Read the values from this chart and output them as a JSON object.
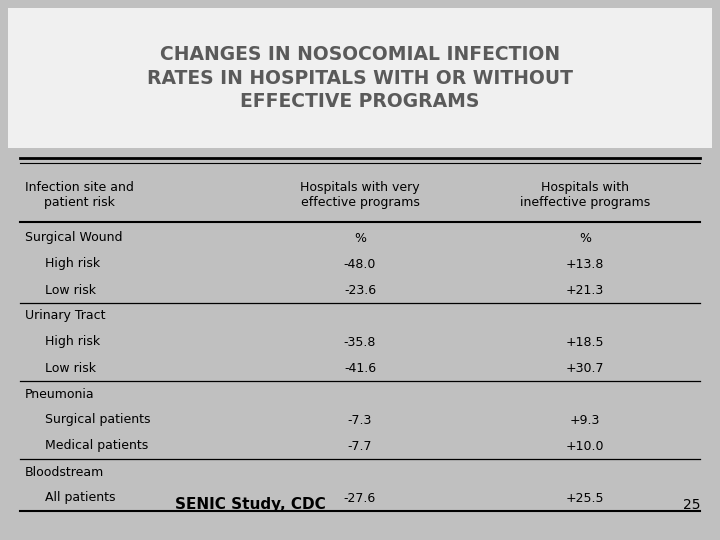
{
  "title_lines": [
    "CHANGES IN NOSOCOMIAL INFECTION",
    "RATES IN HOSPITALS WITH OR WITHOUT",
    "EFFECTIVE PROGRAMS"
  ],
  "title_bg": "#f0f0f0",
  "title_color": "#5a5a5a",
  "bg_color": "#c0c0c0",
  "footer_text": "SENIC Study, CDC",
  "page_number": "25",
  "col_headers": [
    "Infection site and\npatient risk",
    "Hospitals with very\neffective programs",
    "Hospitals with\nineffective programs"
  ],
  "rows": [
    {
      "label": "Surgical Wound",
      "indent": false,
      "col2": "%",
      "col3": "%"
    },
    {
      "label": "High risk",
      "indent": true,
      "col2": "-48.0",
      "col3": "+13.8"
    },
    {
      "label": "Low risk",
      "indent": true,
      "col2": "-23.6",
      "col3": "+21.3"
    },
    {
      "label": "Urinary Tract",
      "indent": false,
      "col2": "",
      "col3": ""
    },
    {
      "label": "High risk",
      "indent": true,
      "col2": "-35.8",
      "col3": "+18.5"
    },
    {
      "label": "Low risk",
      "indent": true,
      "col2": "-41.6",
      "col3": "+30.7"
    },
    {
      "label": "Pneumonia",
      "indent": false,
      "col2": "",
      "col3": ""
    },
    {
      "label": "Surgical patients",
      "indent": true,
      "col2": "-7.3",
      "col3": "+9.3"
    },
    {
      "label": "Medical patients",
      "indent": true,
      "col2": "-7.7",
      "col3": "+10.0"
    },
    {
      "label": "Bloodstream",
      "indent": false,
      "col2": "",
      "col3": ""
    },
    {
      "label": "All patients",
      "indent": true,
      "col2": "-27.6",
      "col3": "+25.5"
    }
  ],
  "section_dividers_after": [
    2,
    5,
    8
  ],
  "header_fontsize": 9.0,
  "row_fontsize": 9.0,
  "title_fontsize": 13.5
}
